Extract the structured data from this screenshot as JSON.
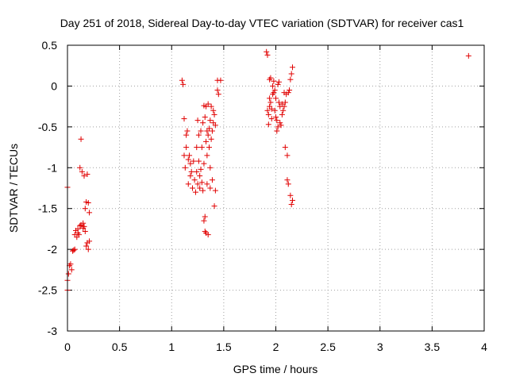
{
  "chart_data": {
    "type": "scatter",
    "title": "Day 251 of 2018, Sidereal Day-to-day VTEC variation (SDTVAR) for receiver cas1",
    "xlabel": "GPS time / hours",
    "ylabel": "SDTVAR / TECUs",
    "xlim": [
      0,
      4
    ],
    "ylim": [
      -3,
      0.5
    ],
    "x_ticks": [
      {
        "value": 0,
        "label": "0"
      },
      {
        "value": 0.5,
        "label": "0.5"
      },
      {
        "value": 1,
        "label": "1"
      },
      {
        "value": 1.5,
        "label": "1.5"
      },
      {
        "value": 2,
        "label": "2"
      },
      {
        "value": 2.5,
        "label": "2.5"
      },
      {
        "value": 3,
        "label": "3"
      },
      {
        "value": 3.5,
        "label": "3.5"
      },
      {
        "value": 4,
        "label": "4"
      }
    ],
    "y_ticks": [
      {
        "value": 0.5,
        "label": "0.5"
      },
      {
        "value": 0,
        "label": "0"
      },
      {
        "value": -0.5,
        "label": "-0.5"
      },
      {
        "value": -1,
        "label": "-1"
      },
      {
        "value": -1.5,
        "label": "-1.5"
      },
      {
        "value": -2,
        "label": "-2"
      },
      {
        "value": -2.5,
        "label": "-2.5"
      },
      {
        "value": -3,
        "label": "-3"
      }
    ],
    "grid": true,
    "marker": "+",
    "color": "#e00000",
    "series": [
      {
        "name": "cas1",
        "points": [
          [
            0.0,
            -1.24
          ],
          [
            0.0,
            -2.5
          ],
          [
            0.0,
            -2.38
          ],
          [
            0.01,
            -2.3
          ],
          [
            0.02,
            -2.2
          ],
          [
            0.03,
            -2.18
          ],
          [
            0.04,
            -2.25
          ],
          [
            0.05,
            -2.02
          ],
          [
            0.06,
            -2.01
          ],
          [
            0.07,
            -2.0
          ],
          [
            0.07,
            -1.82
          ],
          [
            0.08,
            -1.77
          ],
          [
            0.09,
            -1.85
          ],
          [
            0.1,
            -1.8
          ],
          [
            0.1,
            -1.75
          ],
          [
            0.11,
            -1.82
          ],
          [
            0.12,
            -1.71
          ],
          [
            0.12,
            -1.0
          ],
          [
            0.13,
            -0.65
          ],
          [
            0.13,
            -1.7
          ],
          [
            0.14,
            -1.05
          ],
          [
            0.15,
            -1.74
          ],
          [
            0.15,
            -1.68
          ],
          [
            0.16,
            -1.1
          ],
          [
            0.16,
            -1.72
          ],
          [
            0.17,
            -1.78
          ],
          [
            0.17,
            -1.5
          ],
          [
            0.18,
            -1.42
          ],
          [
            0.18,
            -1.96
          ],
          [
            0.19,
            -1.08
          ],
          [
            0.19,
            -1.92
          ],
          [
            0.2,
            -2.0
          ],
          [
            0.2,
            -1.43
          ],
          [
            0.21,
            -1.55
          ],
          [
            0.21,
            -1.9
          ],
          [
            1.1,
            0.07
          ],
          [
            1.11,
            0.02
          ],
          [
            1.12,
            -0.4
          ],
          [
            1.12,
            -0.85
          ],
          [
            1.13,
            -1.0
          ],
          [
            1.14,
            -0.75
          ],
          [
            1.14,
            -0.6
          ],
          [
            1.15,
            -0.55
          ],
          [
            1.16,
            -0.9
          ],
          [
            1.16,
            -1.2
          ],
          [
            1.17,
            -0.85
          ],
          [
            1.18,
            -1.1
          ],
          [
            1.18,
            -0.95
          ],
          [
            1.19,
            -1.05
          ],
          [
            1.2,
            -1.25
          ],
          [
            1.21,
            -0.92
          ],
          [
            1.22,
            -1.15
          ],
          [
            1.23,
            -1.3
          ],
          [
            1.24,
            -0.75
          ],
          [
            1.24,
            -1.05
          ],
          [
            1.25,
            -0.42
          ],
          [
            1.25,
            -1.2
          ],
          [
            1.26,
            -0.6
          ],
          [
            1.26,
            -0.92
          ],
          [
            1.27,
            -1.1
          ],
          [
            1.27,
            -1.25
          ],
          [
            1.28,
            -0.55
          ],
          [
            1.28,
            -1.02
          ],
          [
            1.29,
            -0.75
          ],
          [
            1.29,
            -1.18
          ],
          [
            1.3,
            -0.45
          ],
          [
            1.3,
            -1.28
          ],
          [
            1.31,
            -0.24
          ],
          [
            1.31,
            -0.95
          ],
          [
            1.31,
            -1.65
          ],
          [
            1.32,
            -0.38
          ],
          [
            1.32,
            -1.6
          ],
          [
            1.32,
            -1.78
          ],
          [
            1.33,
            -0.25
          ],
          [
            1.33,
            -0.68
          ],
          [
            1.33,
            -1.8
          ],
          [
            1.34,
            -0.55
          ],
          [
            1.34,
            -0.85
          ],
          [
            1.34,
            -1.2
          ],
          [
            1.35,
            -0.22
          ],
          [
            1.35,
            -0.6
          ],
          [
            1.35,
            -1.82
          ],
          [
            1.36,
            -0.52
          ],
          [
            1.36,
            -0.75
          ],
          [
            1.37,
            -0.42
          ],
          [
            1.37,
            -1.0
          ],
          [
            1.37,
            -1.25
          ],
          [
            1.38,
            -0.25
          ],
          [
            1.38,
            -0.65
          ],
          [
            1.39,
            -0.55
          ],
          [
            1.39,
            -1.15
          ],
          [
            1.4,
            -0.3
          ],
          [
            1.4,
            -0.45
          ],
          [
            1.41,
            -1.47
          ],
          [
            1.41,
            -0.35
          ],
          [
            1.42,
            -0.48
          ],
          [
            1.42,
            -1.28
          ],
          [
            1.44,
            -0.05
          ],
          [
            1.44,
            0.07
          ],
          [
            1.45,
            -0.1
          ],
          [
            1.47,
            0.07
          ],
          [
            1.91,
            0.42
          ],
          [
            1.92,
            0.38
          ],
          [
            1.92,
            -0.3
          ],
          [
            1.93,
            -0.35
          ],
          [
            1.93,
            -0.47
          ],
          [
            1.94,
            0.08
          ],
          [
            1.94,
            -0.15
          ],
          [
            1.94,
            -0.25
          ],
          [
            1.95,
            0.1
          ],
          [
            1.95,
            -0.2
          ],
          [
            1.96,
            -0.4
          ],
          [
            1.96,
            -0.28
          ],
          [
            1.97,
            0.0
          ],
          [
            1.97,
            -0.1
          ],
          [
            1.98,
            0.06
          ],
          [
            1.98,
            -0.08
          ],
          [
            1.99,
            -0.05
          ],
          [
            1.99,
            -0.3
          ],
          [
            2.0,
            -0.15
          ],
          [
            2.0,
            -0.38
          ],
          [
            2.01,
            -0.42
          ],
          [
            2.01,
            -0.55
          ],
          [
            2.02,
            0.02
          ],
          [
            2.02,
            -0.5
          ],
          [
            2.03,
            0.05
          ],
          [
            2.03,
            -0.2
          ],
          [
            2.04,
            -0.45
          ],
          [
            2.04,
            -0.25
          ],
          [
            2.05,
            -0.48
          ],
          [
            2.06,
            -0.35
          ],
          [
            2.06,
            -0.22
          ],
          [
            2.07,
            -0.3
          ],
          [
            2.08,
            -0.25
          ],
          [
            2.08,
            -0.08
          ],
          [
            2.09,
            -0.2
          ],
          [
            2.09,
            -0.75
          ],
          [
            2.1,
            -0.1
          ],
          [
            2.11,
            -0.85
          ],
          [
            2.11,
            -1.15
          ],
          [
            2.12,
            -0.08
          ],
          [
            2.12,
            -1.2
          ],
          [
            2.13,
            -0.05
          ],
          [
            2.14,
            0.08
          ],
          [
            2.14,
            -1.34
          ],
          [
            2.15,
            -1.45
          ],
          [
            2.15,
            0.15
          ],
          [
            2.16,
            -1.4
          ],
          [
            2.16,
            0.23
          ],
          [
            3.85,
            0.37
          ]
        ]
      }
    ]
  }
}
